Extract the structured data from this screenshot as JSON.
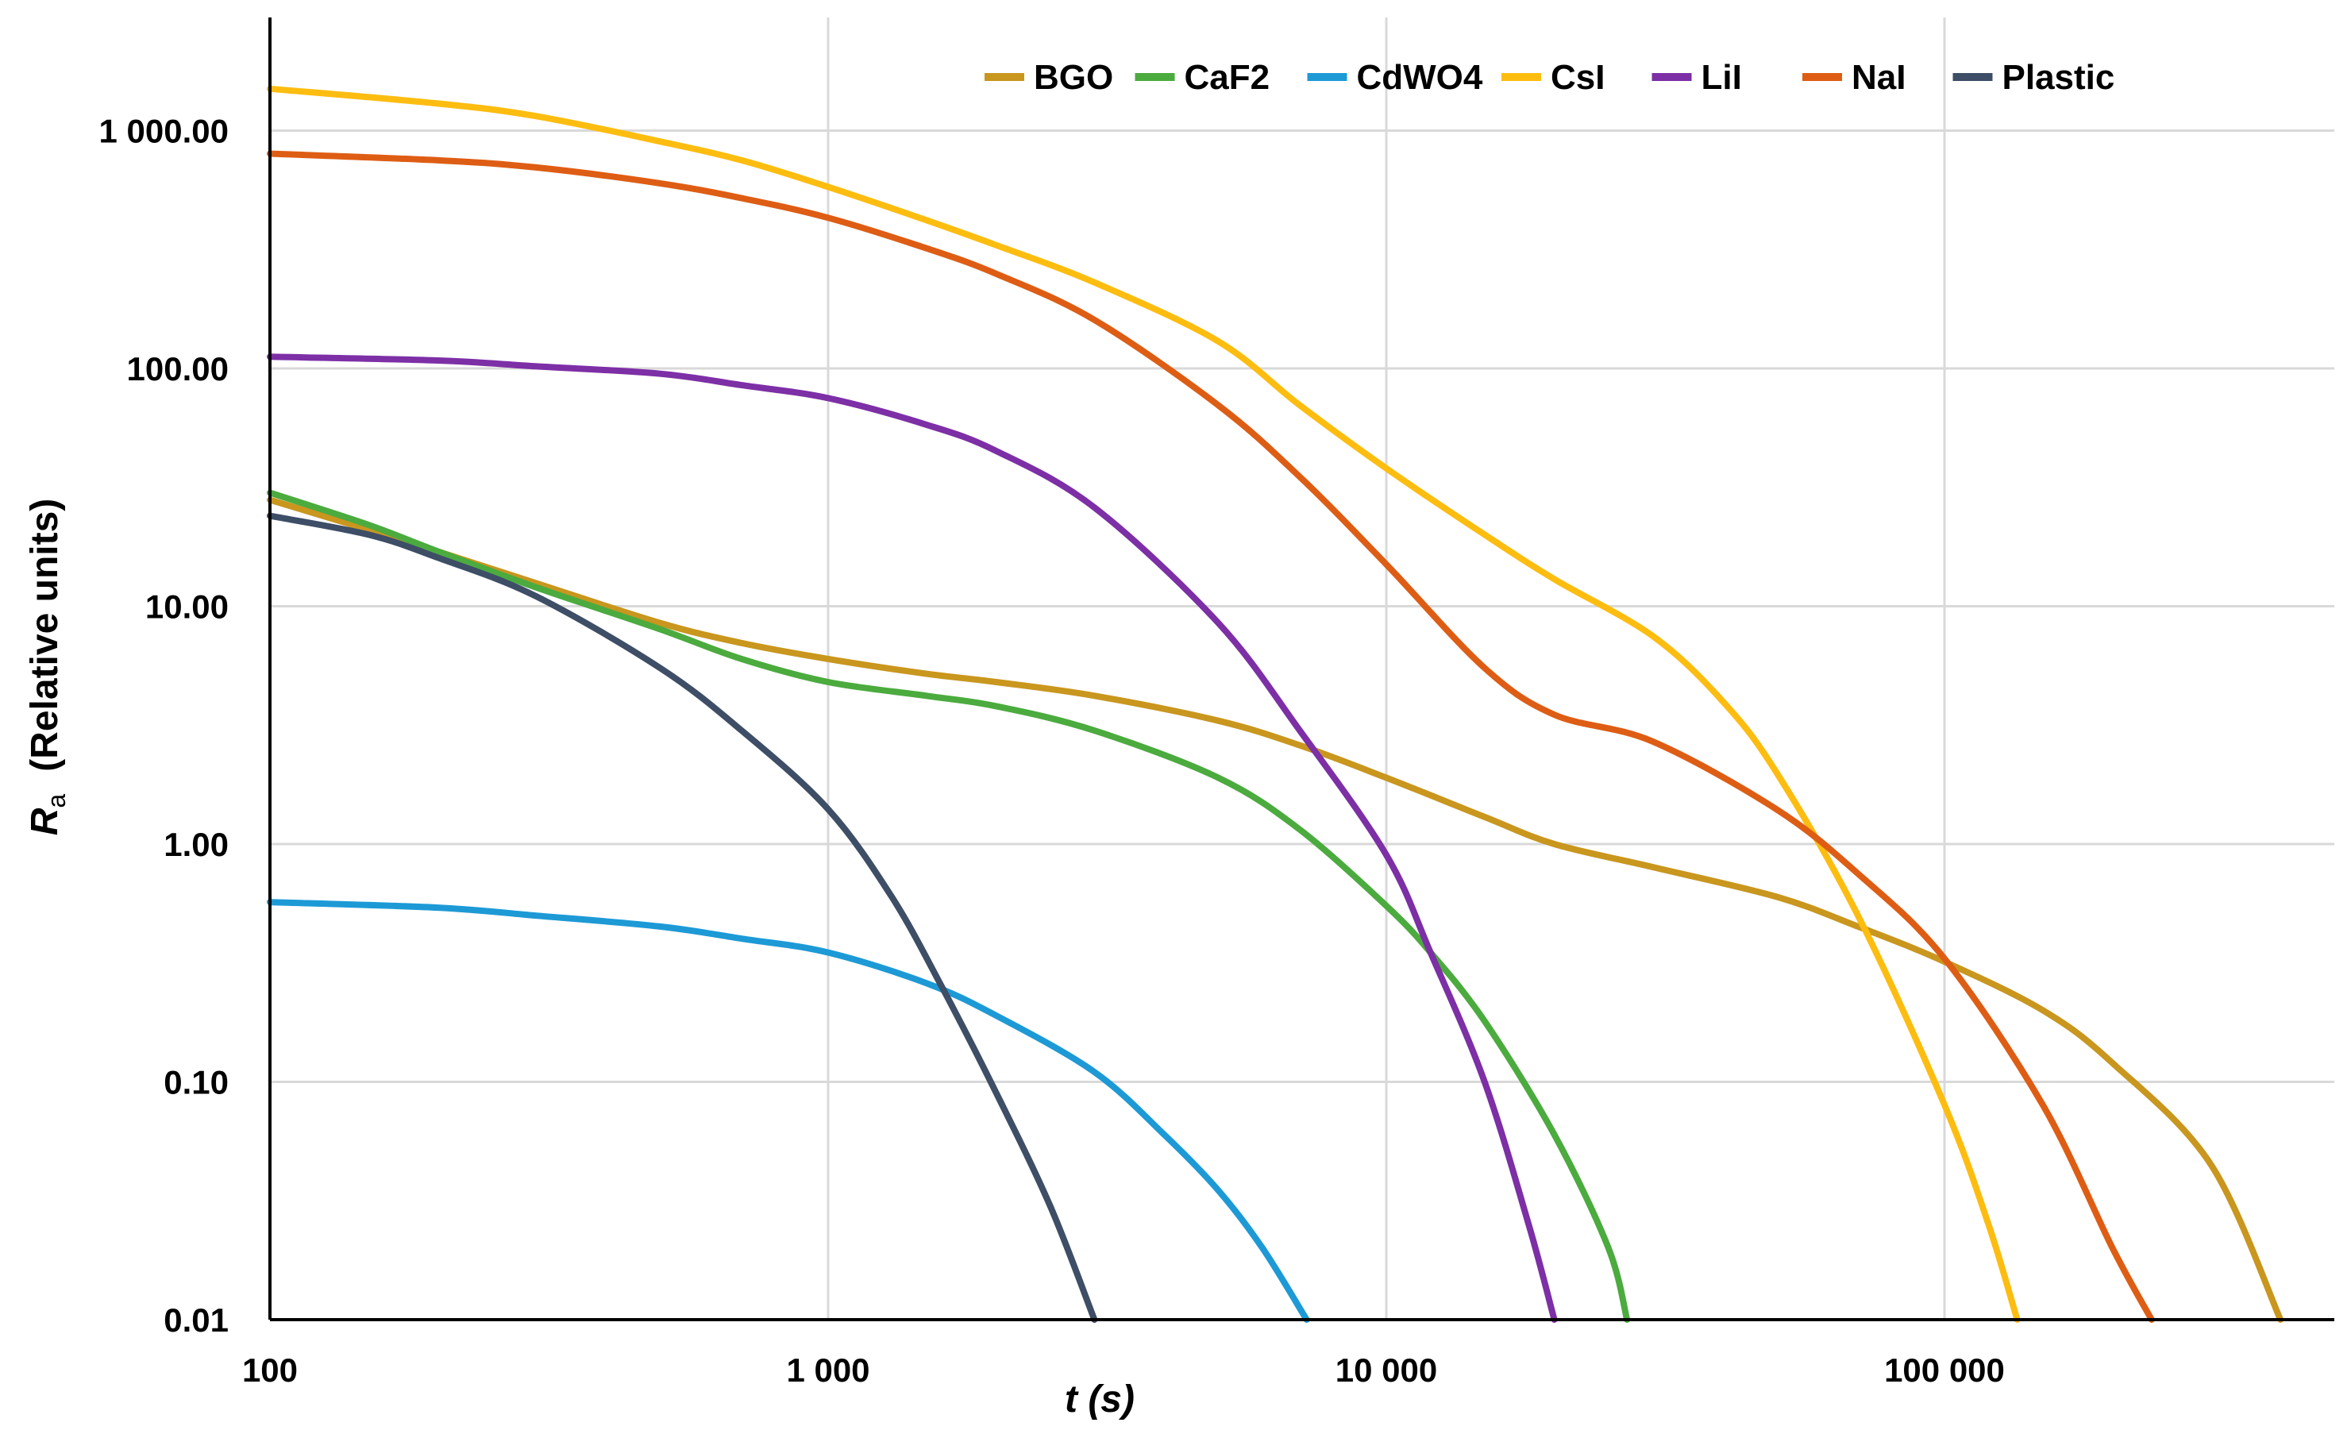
{
  "chart_data": {
    "type": "line",
    "title": "",
    "xlabel": "t  (s)",
    "ylabel": "R",
    "ylabel_sub": "a",
    "ylabel_suffix": "(Relative units)",
    "xscale": "log",
    "yscale": "log",
    "xlim": [
      100,
      500000
    ],
    "ylim": [
      0.01,
      3000
    ],
    "x_ticks": [
      {
        "value": 100,
        "label": "100"
      },
      {
        "value": 1000,
        "label": "1 000"
      },
      {
        "value": 10000,
        "label": "10 000"
      },
      {
        "value": 100000,
        "label": "100 000"
      }
    ],
    "y_ticks": [
      {
        "value": 0.01,
        "label": "0.01"
      },
      {
        "value": 0.1,
        "label": "0.10"
      },
      {
        "value": 1,
        "label": "1.00"
      },
      {
        "value": 10,
        "label": "10.00"
      },
      {
        "value": 100,
        "label": "100.00"
      },
      {
        "value": 1000,
        "label": "1 000.00"
      }
    ],
    "grid": true,
    "legend_position": "top-right",
    "series": [
      {
        "name": "BGO",
        "color": "#c9961e",
        "x": [
          100,
          150,
          200,
          300,
          500,
          700,
          1000,
          1500,
          2000,
          3000,
          5000,
          7000,
          10000,
          15000,
          20000,
          30000,
          50000,
          70000,
          100000,
          150000,
          200000,
          300000,
          400000
        ],
        "y": [
          28,
          21,
          17,
          12.5,
          8.5,
          7,
          6,
          5.2,
          4.8,
          4.2,
          3.3,
          2.6,
          1.9,
          1.3,
          1.0,
          0.8,
          0.6,
          0.45,
          0.32,
          0.2,
          0.12,
          0.045,
          0.01
        ]
      },
      {
        "name": "CaF2",
        "color": "#4bab3e",
        "x": [
          100,
          150,
          200,
          300,
          500,
          700,
          1000,
          1500,
          2000,
          3000,
          5000,
          7000,
          10000,
          12000,
          15000,
          20000,
          25000,
          27000
        ],
        "y": [
          30,
          22,
          17,
          12,
          8,
          6,
          4.8,
          4.2,
          3.8,
          3.0,
          1.9,
          1.15,
          0.55,
          0.35,
          0.18,
          0.06,
          0.02,
          0.01
        ]
      },
      {
        "name": "CdWO4",
        "color": "#1d9ad6",
        "x": [
          100,
          200,
          300,
          500,
          700,
          1000,
          1500,
          2000,
          3000,
          4000,
          5000,
          6000,
          7200
        ],
        "y": [
          0.57,
          0.54,
          0.5,
          0.45,
          0.4,
          0.35,
          0.26,
          0.19,
          0.11,
          0.06,
          0.035,
          0.02,
          0.01
        ]
      },
      {
        "name": "CsI",
        "color": "#fdbd10",
        "x": [
          100,
          200,
          300,
          500,
          700,
          1000,
          1500,
          2000,
          3000,
          5000,
          7000,
          10000,
          15000,
          20000,
          30000,
          40000,
          50000,
          70000,
          100000,
          120000,
          135000
        ],
        "y": [
          1500,
          1300,
          1150,
          900,
          750,
          580,
          420,
          330,
          230,
          130,
          70,
          38,
          20,
          13,
          7.5,
          4,
          2,
          0.5,
          0.08,
          0.025,
          0.01
        ]
      },
      {
        "name": "LiI",
        "color": "#7d2fa6",
        "x": [
          100,
          200,
          300,
          500,
          700,
          1000,
          1500,
          2000,
          3000,
          5000,
          7000,
          10000,
          12000,
          15000,
          18000,
          20000
        ],
        "y": [
          112,
          108,
          102,
          95,
          85,
          75,
          58,
          45,
          26,
          8.5,
          3.0,
          0.9,
          0.35,
          0.1,
          0.025,
          0.01
        ]
      },
      {
        "name": "NaI",
        "color": "#de5d14",
        "x": [
          100,
          200,
          300,
          500,
          700,
          1000,
          1500,
          2000,
          3000,
          5000,
          7000,
          10000,
          15000,
          20000,
          30000,
          50000,
          70000,
          100000,
          150000,
          200000,
          235000
        ],
        "y": [
          800,
          750,
          700,
          600,
          520,
          430,
          320,
          250,
          160,
          70,
          35,
          15,
          5.5,
          3.5,
          2.7,
          1.4,
          0.75,
          0.33,
          0.08,
          0.02,
          0.01
        ]
      },
      {
        "name": "Plastic",
        "color": "#3d4e66",
        "x": [
          100,
          150,
          200,
          300,
          500,
          700,
          1000,
          1300,
          1600,
          2000,
          2500,
          3000
        ],
        "y": [
          24,
          20,
          16,
          11,
          5.5,
          3,
          1.4,
          0.6,
          0.25,
          0.09,
          0.03,
          0.01
        ]
      }
    ]
  }
}
